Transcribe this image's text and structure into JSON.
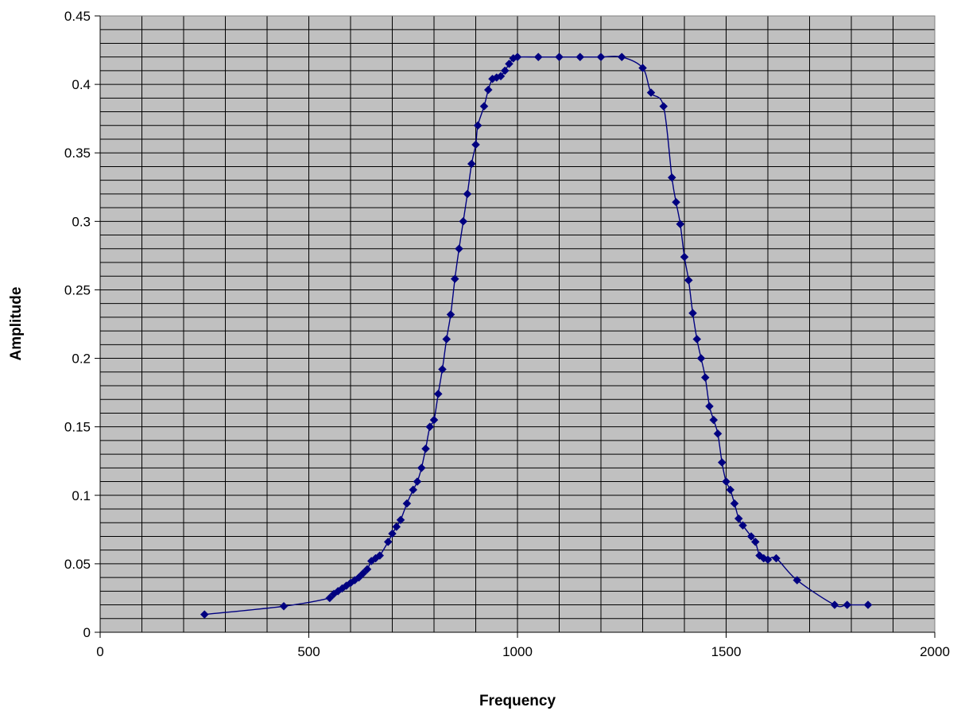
{
  "chart_data": {
    "type": "scatter",
    "title": "",
    "xlabel": "Frequency",
    "ylabel": "Amplitude",
    "xlim": [
      0,
      2000
    ],
    "ylim": [
      0,
      0.45
    ],
    "x_ticks": [
      0,
      500,
      1000,
      1500,
      2000
    ],
    "y_ticks": [
      0,
      0.05,
      0.1,
      0.15,
      0.2,
      0.25,
      0.3,
      0.35,
      0.4,
      0.45
    ],
    "x_tick_labels": [
      "0",
      "500",
      "1000",
      "1500",
      "2000"
    ],
    "y_tick_labels": [
      "0",
      "0.05",
      "0.1",
      "0.15",
      "0.2",
      "0.25",
      "0.3",
      "0.35",
      "0.4",
      "0.45"
    ],
    "grid": true,
    "legend": "none",
    "colors": {
      "plot_background": "#c0c0c0",
      "grid": "#000000",
      "series": "#000080"
    },
    "series": [
      {
        "marker": "diamond",
        "line": "smooth",
        "points": [
          [
            250,
            0.013
          ],
          [
            440,
            0.019
          ],
          [
            550,
            0.025
          ],
          [
            560,
            0.028
          ],
          [
            570,
            0.03
          ],
          [
            580,
            0.032
          ],
          [
            590,
            0.034
          ],
          [
            600,
            0.036
          ],
          [
            610,
            0.038
          ],
          [
            620,
            0.04
          ],
          [
            630,
            0.043
          ],
          [
            640,
            0.046
          ],
          [
            650,
            0.052
          ],
          [
            660,
            0.054
          ],
          [
            670,
            0.056
          ],
          [
            690,
            0.066
          ],
          [
            700,
            0.072
          ],
          [
            710,
            0.077
          ],
          [
            720,
            0.082
          ],
          [
            735,
            0.094
          ],
          [
            750,
            0.104
          ],
          [
            760,
            0.11
          ],
          [
            770,
            0.12
          ],
          [
            780,
            0.134
          ],
          [
            790,
            0.15
          ],
          [
            800,
            0.155
          ],
          [
            810,
            0.174
          ],
          [
            820,
            0.192
          ],
          [
            830,
            0.214
          ],
          [
            840,
            0.232
          ],
          [
            850,
            0.258
          ],
          [
            860,
            0.28
          ],
          [
            870,
            0.3
          ],
          [
            880,
            0.32
          ],
          [
            890,
            0.342
          ],
          [
            900,
            0.356
          ],
          [
            905,
            0.37
          ],
          [
            920,
            0.384
          ],
          [
            930,
            0.396
          ],
          [
            940,
            0.404
          ],
          [
            950,
            0.405
          ],
          [
            960,
            0.406
          ],
          [
            970,
            0.41
          ],
          [
            980,
            0.415
          ],
          [
            990,
            0.419
          ],
          [
            1000,
            0.42
          ],
          [
            1050,
            0.42
          ],
          [
            1100,
            0.42
          ],
          [
            1150,
            0.42
          ],
          [
            1200,
            0.42
          ],
          [
            1250,
            0.42
          ],
          [
            1300,
            0.412
          ],
          [
            1320,
            0.394
          ],
          [
            1350,
            0.384
          ],
          [
            1370,
            0.332
          ],
          [
            1380,
            0.314
          ],
          [
            1390,
            0.298
          ],
          [
            1400,
            0.274
          ],
          [
            1410,
            0.257
          ],
          [
            1420,
            0.233
          ],
          [
            1430,
            0.214
          ],
          [
            1440,
            0.2
          ],
          [
            1450,
            0.186
          ],
          [
            1460,
            0.165
          ],
          [
            1470,
            0.155
          ],
          [
            1480,
            0.145
          ],
          [
            1490,
            0.124
          ],
          [
            1500,
            0.11
          ],
          [
            1510,
            0.104
          ],
          [
            1520,
            0.094
          ],
          [
            1530,
            0.083
          ],
          [
            1540,
            0.078
          ],
          [
            1560,
            0.07
          ],
          [
            1570,
            0.066
          ],
          [
            1580,
            0.056
          ],
          [
            1590,
            0.054
          ],
          [
            1600,
            0.053
          ],
          [
            1620,
            0.054
          ],
          [
            1670,
            0.038
          ],
          [
            1760,
            0.02
          ],
          [
            1790,
            0.02
          ],
          [
            1840,
            0.02
          ]
        ]
      }
    ]
  }
}
